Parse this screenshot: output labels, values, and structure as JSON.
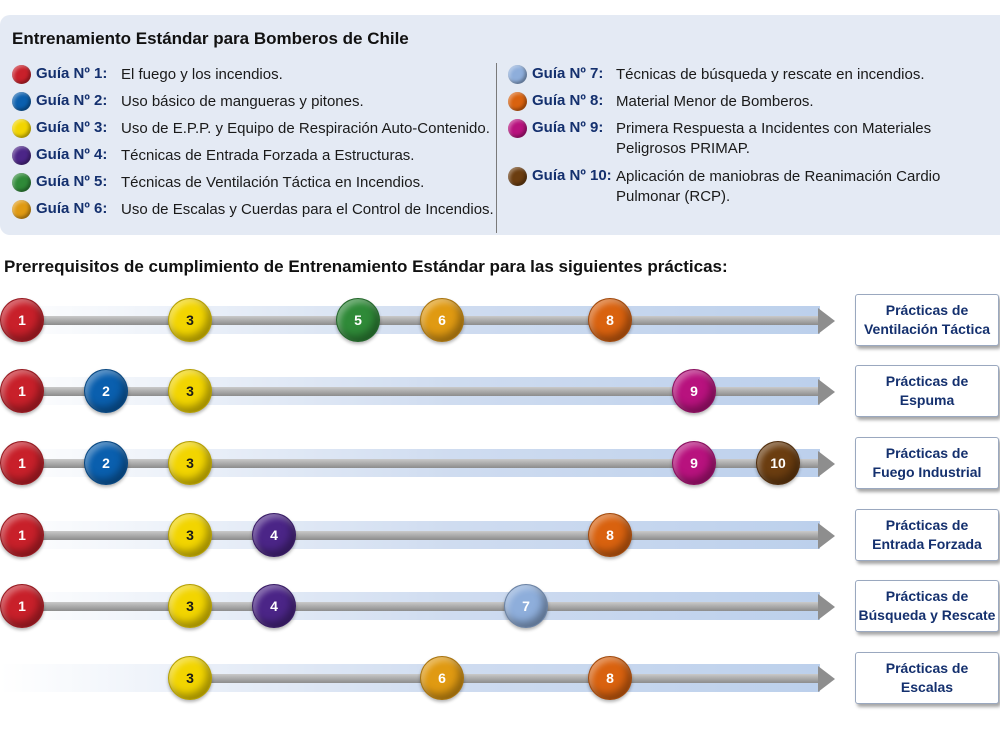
{
  "legend": {
    "title": "Entrenamiento Estándar para Bomberos de Chile",
    "guides": [
      {
        "label": "Guía Nº 1:",
        "text": "El fuego y los incendios.",
        "color": "#c8202a"
      },
      {
        "label": "Guía Nº 2:",
        "text": "Uso básico de mangueras y pitones.",
        "color": "#0a5fae"
      },
      {
        "label": "Guía Nº 3:",
        "text": "Uso de E.P.P. y Equipo de Respiración Auto-Contenido.",
        "color": "#f2d500"
      },
      {
        "label": "Guía Nº 4:",
        "text": "Técnicas de Entrada Forzada a Estructuras.",
        "color": "#4b2587"
      },
      {
        "label": "Guía Nº 5:",
        "text": "Técnicas de Ventilación Táctica en Incendios.",
        "color": "#2f8a38"
      },
      {
        "label": "Guía Nº 6:",
        "text": "Uso de Escalas y Cuerdas para el Control de Incendios.",
        "color": "#e09a12"
      },
      {
        "label": "Guía Nº 7:",
        "text": "Técnicas de búsqueda y rescate en incendios.",
        "color": "#8eaedb"
      },
      {
        "label": "Guía Nº 8:",
        "text": "Material Menor de Bomberos.",
        "color": "#d9620f"
      },
      {
        "label": "Guía Nº 9:",
        "text": "Primera Respuesta a Incidentes con Materiales Peligrosos PRIMAP.",
        "color": "#b8127e"
      },
      {
        "label": "Guía Nº 10:",
        "text": "Aplicación de maniobras de Reanimación Cardio Pulmonar (RCP).",
        "color": "#6b3d10"
      }
    ]
  },
  "section_heading": "Prerrequisitos de cumplimiento de Entrenamiento Estándar para las siguientes prácticas:",
  "practices": [
    {
      "line1": "Prácticas de",
      "line2": "Ventilación Táctica",
      "guides": [
        "1",
        "3",
        "5",
        "6",
        "8"
      ]
    },
    {
      "line1": "Prácticas de",
      "line2": "Espuma",
      "guides": [
        "1",
        "2",
        "3",
        "9"
      ]
    },
    {
      "line1": "Prácticas de",
      "line2": "Fuego Industrial",
      "guides": [
        "1",
        "2",
        "3",
        "9",
        "10"
      ]
    },
    {
      "line1": "Prácticas de",
      "line2": "Entrada Forzada",
      "guides": [
        "1",
        "3",
        "4",
        "8"
      ]
    },
    {
      "line1": "Prácticas de",
      "line2": "Búsqueda y Rescate",
      "guides": [
        "1",
        "3",
        "4",
        "7"
      ]
    },
    {
      "line1": "Prácticas de",
      "line2": "Escalas",
      "guides": [
        "3",
        "6",
        "8"
      ]
    }
  ]
}
